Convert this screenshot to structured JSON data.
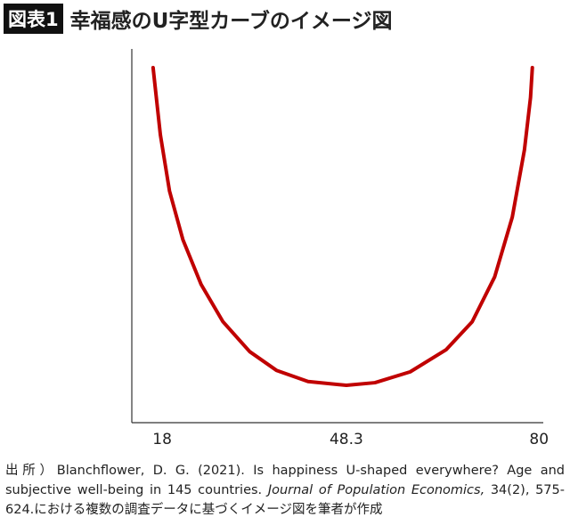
{
  "chart_data": {
    "type": "line",
    "label": "図表1",
    "title": "幸福感のU字型カーブのイメージ図",
    "x": [
      16.5,
      17.7,
      19.2,
      21.4,
      24.4,
      28,
      32.4,
      36.8,
      42,
      48.3,
      53,
      58.8,
      64.7,
      69,
      72.7,
      75.6,
      77.6,
      78.6,
      78.9
    ],
    "series": [
      {
        "name": "幸福感",
        "color": "#c00000",
        "values": [
          95,
          77,
          62,
          49,
          37,
          27,
          19,
          14,
          11,
          10,
          10.7,
          13.6,
          19.5,
          27,
          39,
          55,
          73,
          87,
          95
        ]
      }
    ],
    "xlim": [
      13,
      80.7
    ],
    "xticks": [
      18,
      48.3,
      80
    ],
    "ylim": [
      0,
      100
    ],
    "source": [
      "出所）Blanchflower, D. G. (2021). Is happiness U-shaped everywhere? Age and subjective well-being in 145 countries. ",
      "Journal of Population Economics,",
      " 34(2), 575-624.における複数の調査データに基づくイメージ図を筆者が作成"
    ]
  }
}
